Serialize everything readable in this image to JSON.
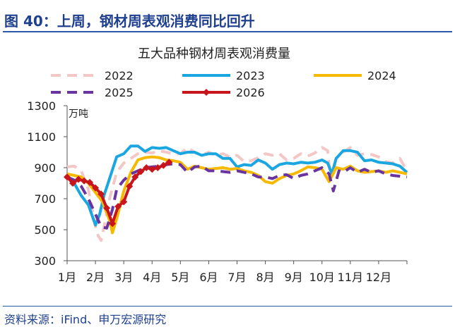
{
  "figure": {
    "title": "图 40：上周，钢材周表观消费同比回升",
    "source": "资料来源：iFind、申万宏源研究"
  },
  "chart_data": {
    "type": "line",
    "title": "五大品种钢材周表观消费量",
    "unit": "万吨",
    "ylim": [
      300,
      1300
    ],
    "yticks": [
      300,
      500,
      700,
      900,
      1100,
      1300
    ],
    "xlim": [
      1,
      13
    ],
    "xticks": [
      "1月",
      "2月",
      "3月",
      "4月",
      "5月",
      "6月",
      "7月",
      "8月",
      "9月",
      "10月",
      "11月",
      "12月"
    ],
    "grid": false,
    "legend_position": "top",
    "series": [
      {
        "name": "2022",
        "color": "#f4c7c7",
        "dash": "dash",
        "points": [
          [
            1.0,
            905
          ],
          [
            1.25,
            910
          ],
          [
            1.5,
            880
          ],
          [
            1.75,
            760
          ],
          [
            2.0,
            520
          ],
          [
            2.1,
            460
          ],
          [
            2.2,
            430
          ],
          [
            2.35,
            560
          ],
          [
            2.5,
            700
          ],
          [
            2.75,
            870
          ],
          [
            3.0,
            930
          ],
          [
            3.25,
            960
          ],
          [
            3.5,
            990
          ],
          [
            3.75,
            1000
          ],
          [
            4.0,
            995
          ],
          [
            4.25,
            1010
          ],
          [
            4.5,
            1000
          ],
          [
            4.75,
            990
          ],
          [
            5.0,
            990
          ],
          [
            5.25,
            1030
          ],
          [
            5.5,
            1000
          ],
          [
            5.75,
            980
          ],
          [
            6.0,
            1000
          ],
          [
            6.25,
            980
          ],
          [
            6.5,
            990
          ],
          [
            6.75,
            970
          ],
          [
            7.0,
            980
          ],
          [
            7.25,
            940
          ],
          [
            7.5,
            945
          ],
          [
            7.75,
            965
          ],
          [
            8.0,
            990
          ],
          [
            8.25,
            980
          ],
          [
            8.5,
            990
          ],
          [
            8.75,
            950
          ],
          [
            9.0,
            960
          ],
          [
            9.25,
            990
          ],
          [
            9.5,
            975
          ],
          [
            9.75,
            995
          ],
          [
            10.0,
            1030
          ],
          [
            10.2,
            1010
          ],
          [
            10.3,
            830
          ],
          [
            10.5,
            960
          ],
          [
            10.75,
            1000
          ],
          [
            11.0,
            1030
          ],
          [
            11.25,
            980
          ],
          [
            11.5,
            990
          ],
          [
            11.75,
            985
          ],
          [
            12.0,
            970
          ],
          [
            12.25,
            940
          ],
          [
            12.5,
            930
          ],
          [
            12.75,
            960
          ],
          [
            13.0,
            880
          ]
        ]
      },
      {
        "name": "2023",
        "color": "#1aa6e0",
        "dash": "solid",
        "points": [
          [
            1.0,
            840
          ],
          [
            1.25,
            800
          ],
          [
            1.5,
            720
          ],
          [
            1.75,
            660
          ],
          [
            2.0,
            530
          ],
          [
            2.15,
            600
          ],
          [
            2.3,
            720
          ],
          [
            2.5,
            830
          ],
          [
            2.75,
            970
          ],
          [
            3.0,
            990
          ],
          [
            3.25,
            1040
          ],
          [
            3.5,
            1040
          ],
          [
            3.75,
            1005
          ],
          [
            4.0,
            1030
          ],
          [
            4.25,
            1025
          ],
          [
            4.5,
            1030
          ],
          [
            4.75,
            1010
          ],
          [
            5.0,
            990
          ],
          [
            5.25,
            1000
          ],
          [
            5.5,
            1000
          ],
          [
            5.75,
            980
          ],
          [
            6.0,
            990
          ],
          [
            6.25,
            990
          ],
          [
            6.5,
            960
          ],
          [
            6.75,
            960
          ],
          [
            7.0,
            905
          ],
          [
            7.25,
            920
          ],
          [
            7.5,
            915
          ],
          [
            7.75,
            950
          ],
          [
            8.0,
            930
          ],
          [
            8.25,
            890
          ],
          [
            8.5,
            920
          ],
          [
            8.75,
            930
          ],
          [
            9.0,
            925
          ],
          [
            9.25,
            935
          ],
          [
            9.5,
            930
          ],
          [
            9.75,
            935
          ],
          [
            10.0,
            950
          ],
          [
            10.2,
            930
          ],
          [
            10.35,
            860
          ],
          [
            10.5,
            960
          ],
          [
            10.75,
            1010
          ],
          [
            11.0,
            1010
          ],
          [
            11.25,
            1000
          ],
          [
            11.5,
            945
          ],
          [
            11.75,
            950
          ],
          [
            12.0,
            935
          ],
          [
            12.25,
            930
          ],
          [
            12.5,
            925
          ],
          [
            12.75,
            910
          ],
          [
            13.0,
            870
          ]
        ]
      },
      {
        "name": "2024",
        "color": "#f7b900",
        "dash": "solid",
        "points": [
          [
            1.0,
            860
          ],
          [
            1.25,
            850
          ],
          [
            1.5,
            840
          ],
          [
            1.75,
            800
          ],
          [
            2.0,
            740
          ],
          [
            2.25,
            680
          ],
          [
            2.5,
            560
          ],
          [
            2.6,
            480
          ],
          [
            2.75,
            570
          ],
          [
            3.0,
            750
          ],
          [
            3.25,
            870
          ],
          [
            3.5,
            950
          ],
          [
            3.75,
            965
          ],
          [
            4.0,
            970
          ],
          [
            4.25,
            965
          ],
          [
            4.5,
            950
          ],
          [
            4.75,
            945
          ],
          [
            5.0,
            935
          ],
          [
            5.25,
            890
          ],
          [
            5.5,
            910
          ],
          [
            5.75,
            900
          ],
          [
            6.0,
            890
          ],
          [
            6.25,
            895
          ],
          [
            6.5,
            900
          ],
          [
            6.75,
            890
          ],
          [
            7.0,
            895
          ],
          [
            7.25,
            880
          ],
          [
            7.5,
            870
          ],
          [
            7.75,
            850
          ],
          [
            8.0,
            810
          ],
          [
            8.25,
            800
          ],
          [
            8.5,
            830
          ],
          [
            8.75,
            850
          ],
          [
            9.0,
            860
          ],
          [
            9.25,
            880
          ],
          [
            9.5,
            905
          ],
          [
            9.75,
            900
          ],
          [
            10.0,
            890
          ],
          [
            10.25,
            810
          ],
          [
            10.5,
            900
          ],
          [
            10.75,
            890
          ],
          [
            11.0,
            910
          ],
          [
            11.25,
            880
          ],
          [
            11.5,
            870
          ],
          [
            11.75,
            875
          ],
          [
            12.0,
            880
          ],
          [
            12.25,
            870
          ],
          [
            12.5,
            880
          ],
          [
            12.75,
            870
          ],
          [
            13.0,
            860
          ]
        ]
      },
      {
        "name": "2025",
        "color": "#6a34a0",
        "dash": "dash",
        "points": [
          [
            1.0,
            840
          ],
          [
            1.25,
            820
          ],
          [
            1.5,
            780
          ],
          [
            1.75,
            700
          ],
          [
            2.0,
            600
          ],
          [
            2.2,
            520
          ],
          [
            2.4,
            510
          ],
          [
            2.6,
            630
          ],
          [
            2.75,
            760
          ],
          [
            3.0,
            820
          ],
          [
            3.25,
            860
          ],
          [
            3.5,
            880
          ],
          [
            3.75,
            900
          ],
          [
            4.0,
            905
          ],
          [
            4.25,
            910
          ],
          [
            4.5,
            920
          ],
          [
            4.75,
            925
          ],
          [
            5.0,
            920
          ],
          [
            5.25,
            870
          ],
          [
            5.5,
            905
          ],
          [
            5.75,
            910
          ],
          [
            6.0,
            880
          ],
          [
            6.25,
            880
          ],
          [
            6.5,
            875
          ],
          [
            6.75,
            870
          ],
          [
            7.0,
            880
          ],
          [
            7.25,
            870
          ],
          [
            7.5,
            860
          ],
          [
            7.75,
            840
          ],
          [
            8.0,
            840
          ],
          [
            8.25,
            830
          ],
          [
            8.5,
            850
          ],
          [
            8.75,
            855
          ],
          [
            9.0,
            830
          ],
          [
            9.25,
            850
          ],
          [
            9.5,
            860
          ],
          [
            9.75,
            880
          ],
          [
            10.0,
            900
          ],
          [
            10.25,
            860
          ],
          [
            10.4,
            750
          ],
          [
            10.6,
            880
          ],
          [
            10.75,
            870
          ],
          [
            11.0,
            900
          ],
          [
            11.25,
            870
          ],
          [
            11.5,
            890
          ],
          [
            11.75,
            870
          ],
          [
            12.0,
            880
          ],
          [
            12.25,
            860
          ],
          [
            12.5,
            850
          ],
          [
            12.75,
            845
          ],
          [
            13.0,
            840
          ]
        ]
      },
      {
        "name": "2026",
        "color": "#c8151b",
        "dash": "solid",
        "points": [
          [
            1.0,
            840
          ],
          [
            1.2,
            800
          ],
          [
            1.4,
            825
          ],
          [
            1.6,
            815
          ],
          [
            1.8,
            805
          ],
          [
            2.0,
            770
          ],
          [
            2.2,
            730
          ],
          [
            2.4,
            640
          ],
          [
            2.6,
            540
          ],
          [
            2.8,
            650
          ],
          [
            3.0,
            680
          ],
          [
            3.2,
            780
          ],
          [
            3.4,
            840
          ],
          [
            3.6,
            875
          ],
          [
            3.8,
            900
          ],
          [
            4.0,
            890
          ],
          [
            4.2,
            900
          ],
          [
            4.4,
            915
          ],
          [
            4.6,
            935
          ]
        ]
      }
    ]
  }
}
